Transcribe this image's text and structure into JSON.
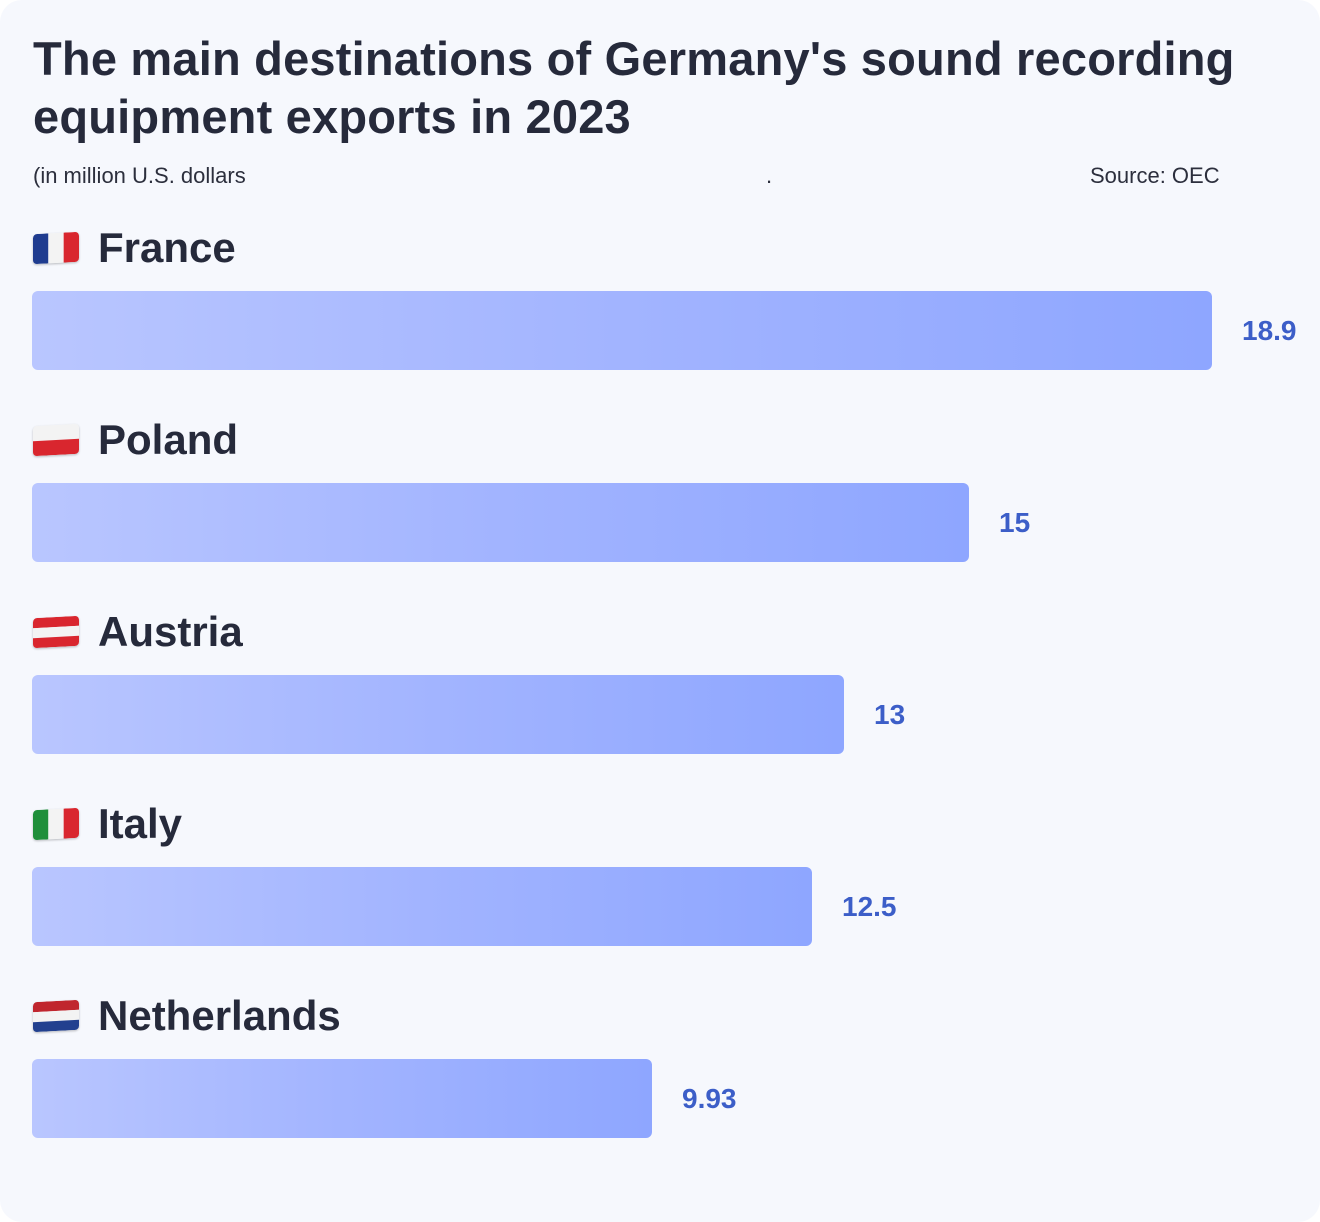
{
  "title": "The main destinations of Germany's sound recording equipment exports in 2023",
  "subtitle": "(in million U.S. dollars",
  "separator": ".",
  "source": "Source: OEC",
  "colors": {
    "background": "#f6f8fd",
    "bar_start": "#b9c6ff",
    "bar_end": "#8ea6ff",
    "value_text": "#3c5ec8",
    "title_text": "#262a3b"
  },
  "chart_data": {
    "type": "bar",
    "orientation": "horizontal",
    "title": "The main destinations of Germany's sound recording equipment exports in 2023",
    "subtitle": "(in million U.S. dollars",
    "xlabel": "",
    "ylabel": "",
    "categories": [
      "France",
      "Poland",
      "Austria",
      "Italy",
      "Netherlands"
    ],
    "values": [
      18.9,
      15,
      13,
      12.5,
      9.93
    ],
    "value_labels": [
      "18.9",
      "15",
      "13",
      "12.5",
      "9.93"
    ],
    "flags": [
      "france-flag-icon",
      "poland-flag-icon",
      "austria-flag-icon",
      "italy-flag-icon",
      "netherlands-flag-icon"
    ],
    "xlim": [
      0,
      18.9
    ],
    "grid": false,
    "legend": "none"
  }
}
